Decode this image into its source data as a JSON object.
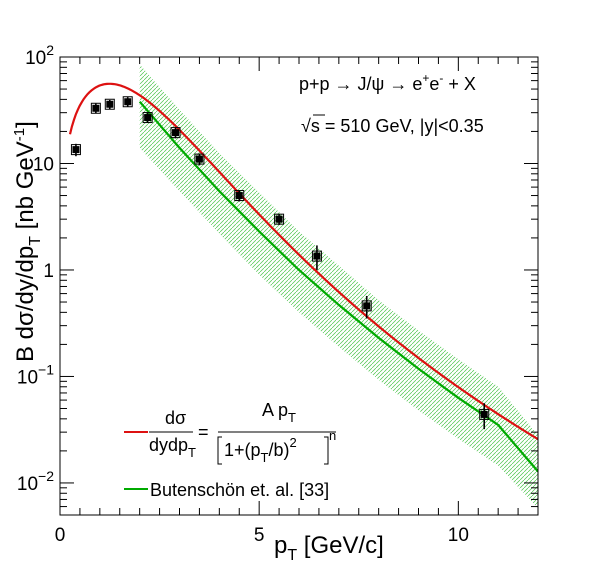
{
  "chart_data": {
    "type": "scatter",
    "title": "",
    "xlabel": {
      "base": "p",
      "sub": "T",
      "rest": " [GeV/c]"
    },
    "ylabel": "B dσ/dy/dp_T [nb GeV^-1]",
    "xlim": [
      0,
      12
    ],
    "ylim": [
      0.005,
      100
    ],
    "yscale": "log",
    "grid": false,
    "x_ticks": [
      {
        "value": 0,
        "label": "0"
      },
      {
        "value": 5,
        "label": "5"
      },
      {
        "value": 10,
        "label": "10"
      }
    ],
    "y_ticks": [
      {
        "value": 0.01,
        "base": "10",
        "exp": "−2"
      },
      {
        "value": 0.1,
        "base": "10",
        "exp": "−1"
      },
      {
        "value": 1,
        "base": "1",
        "exp": ""
      },
      {
        "value": 10,
        "base": "10",
        "exp": ""
      },
      {
        "value": 100,
        "base": "10",
        "exp": "2"
      }
    ],
    "series": [
      {
        "kind": "points",
        "color": "#000000",
        "points": [
          {
            "x": 0.4,
            "y": 13.5,
            "err": 1.8
          },
          {
            "x": 0.9,
            "y": 33.0,
            "err": 3.5
          },
          {
            "x": 1.25,
            "y": 36.0,
            "err": 3.5
          },
          {
            "x": 1.7,
            "y": 38.0,
            "err": 4.0
          },
          {
            "x": 2.2,
            "y": 27.0,
            "err": 3.0
          },
          {
            "x": 2.9,
            "y": 19.5,
            "err": 2.3
          },
          {
            "x": 3.5,
            "y": 11.0,
            "err": 1.4
          },
          {
            "x": 4.5,
            "y": 5.0,
            "err": 0.6
          },
          {
            "x": 5.5,
            "y": 3.0,
            "err": 0.35
          },
          {
            "x": 6.45,
            "y": 1.35,
            "err": 0.35
          },
          {
            "x": 7.7,
            "y": 0.46,
            "err": 0.11
          },
          {
            "x": 10.65,
            "y": 0.044,
            "err": 0.012
          }
        ]
      },
      {
        "kind": "fit",
        "color": "#dd1111",
        "formula": "A*pT/(1+(pT/b)^2)^n",
        "params": {
          "A": 77,
          "b": 3.24,
          "n": 3.9
        },
        "xrange": [
          0.25,
          12
        ]
      },
      {
        "kind": "band",
        "color": "#00aa00",
        "points": [
          {
            "x": 2.0,
            "y": 38,
            "lo": 14,
            "hi": 85
          },
          {
            "x": 3.0,
            "y": 14,
            "lo": 5.5,
            "hi": 32
          },
          {
            "x": 4.0,
            "y": 5.5,
            "lo": 2.2,
            "hi": 12.5
          },
          {
            "x": 5.0,
            "y": 2.3,
            "lo": 0.9,
            "hi": 5.3
          },
          {
            "x": 6.0,
            "y": 1.0,
            "lo": 0.4,
            "hi": 2.3
          },
          {
            "x": 7.0,
            "y": 0.47,
            "lo": 0.19,
            "hi": 1.1
          },
          {
            "x": 8.0,
            "y": 0.23,
            "lo": 0.093,
            "hi": 0.52
          },
          {
            "x": 9.0,
            "y": 0.118,
            "lo": 0.048,
            "hi": 0.27
          },
          {
            "x": 10.0,
            "y": 0.063,
            "lo": 0.026,
            "hi": 0.145
          },
          {
            "x": 11.0,
            "y": 0.035,
            "lo": 0.0145,
            "hi": 0.08
          },
          {
            "x": 12.0,
            "y": 0.0128,
            "lo": 0.0058,
            "hi": 0.028
          }
        ]
      }
    ],
    "annotations": {
      "process": {
        "a": "p+p → J/ψ → e",
        "sup1": "+",
        "b": "e",
        "sup2": "-",
        "c": " + X"
      },
      "energy": {
        "root": "√",
        "s": "s",
        "rest": " = 510 GeV, |y|<0.35"
      }
    },
    "legend": {
      "placement": "bottom-left",
      "fit_entry": {
        "num": "dσ",
        "den_a": "dydp",
        "den_sub": "T",
        "eq": "=",
        "rhs_num_a": "A p",
        "rhs_num_sub": "T",
        "rhs_den_a": "1+(p",
        "rhs_den_sub": "T",
        "rhs_den_b": "/b)",
        "rhs_den_sup": "2",
        "rhs_den_exp": "n"
      },
      "band_entry": "Butenschön et. al. [33]"
    }
  }
}
